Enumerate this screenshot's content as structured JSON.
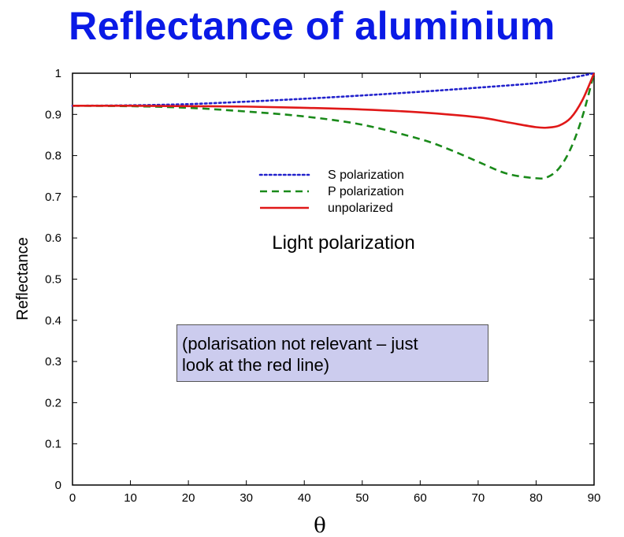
{
  "title": "Reflectance of aluminium",
  "chart_data": {
    "type": "line",
    "xlabel": "θ",
    "ylabel": "Reflectance",
    "xlim": [
      0,
      90
    ],
    "ylim": [
      0,
      1
    ],
    "xticks": [
      "0",
      "10",
      "20",
      "30",
      "40",
      "50",
      "60",
      "70",
      "80",
      "90"
    ],
    "yticks": [
      "0",
      "0.1",
      "0.2",
      "0.3",
      "0.4",
      "0.5",
      "0.6",
      "0.7",
      "0.8",
      "0.9",
      "1"
    ],
    "grid": false,
    "legend_placement": "upper-center",
    "series": [
      {
        "name": "S polarization",
        "color": "#2222cc",
        "style": "dotted",
        "x": [
          0,
          10,
          20,
          30,
          40,
          50,
          60,
          70,
          80,
          85,
          90
        ],
        "y": [
          0.921,
          0.922,
          0.925,
          0.931,
          0.938,
          0.946,
          0.955,
          0.965,
          0.976,
          0.986,
          1.0
        ]
      },
      {
        "name": "P polarization",
        "color": "#1a8a1a",
        "style": "dashed",
        "x": [
          0,
          10,
          20,
          30,
          40,
          50,
          60,
          65,
          70,
          75,
          80,
          82,
          84,
          86,
          88,
          90
        ],
        "y": [
          0.921,
          0.92,
          0.916,
          0.907,
          0.895,
          0.875,
          0.84,
          0.815,
          0.785,
          0.756,
          0.745,
          0.748,
          0.77,
          0.818,
          0.895,
          1.0
        ]
      },
      {
        "name": "unpolarized",
        "color": "#e01818",
        "style": "solid",
        "x": [
          0,
          10,
          20,
          30,
          40,
          50,
          60,
          70,
          75,
          80,
          82,
          84,
          86,
          88,
          90
        ],
        "y": [
          0.921,
          0.921,
          0.92,
          0.919,
          0.916,
          0.912,
          0.905,
          0.893,
          0.881,
          0.869,
          0.868,
          0.873,
          0.892,
          0.935,
          1.0
        ]
      }
    ],
    "annotation": "Light polarization"
  },
  "note": {
    "line1": "(polarisation not relevant – just",
    "line2": "look at the red line)"
  }
}
